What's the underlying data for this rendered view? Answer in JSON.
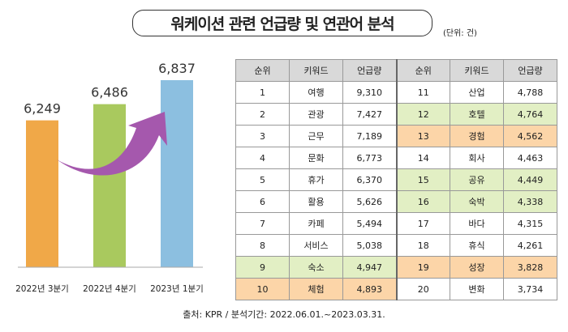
{
  "title": "워케이션 관련 언급량 및 연관어 분석",
  "unit": "(단위: 건)",
  "chart_data": {
    "type": "bar",
    "categories": [
      "2022년 3분기",
      "2022년 4분기",
      "2023년 1분기"
    ],
    "values": [
      6249,
      6486,
      6837
    ],
    "value_labels": [
      "6,249",
      "6,486",
      "6,837"
    ],
    "colors": [
      "#f0a848",
      "#a9c95e",
      "#8cbfe0"
    ],
    "arrow_color": "#a558ad",
    "title": "",
    "xlabel": "",
    "ylabel": "",
    "grid": false
  },
  "table": {
    "headers": [
      "순위",
      "키워드",
      "언급량",
      "순위",
      "키워드",
      "언급량"
    ],
    "rows": [
      {
        "l": [
          "1",
          "여행",
          "9,310"
        ],
        "r": [
          "11",
          "산업",
          "4,788"
        ],
        "lh": "",
        "rh": ""
      },
      {
        "l": [
          "2",
          "관광",
          "7,427"
        ],
        "r": [
          "12",
          "호텔",
          "4,764"
        ],
        "lh": "",
        "rh": "green"
      },
      {
        "l": [
          "3",
          "근무",
          "7,189"
        ],
        "r": [
          "13",
          "경험",
          "4,562"
        ],
        "lh": "",
        "rh": "orange"
      },
      {
        "l": [
          "4",
          "문화",
          "6,773"
        ],
        "r": [
          "14",
          "회사",
          "4,463"
        ],
        "lh": "",
        "rh": ""
      },
      {
        "l": [
          "5",
          "휴가",
          "6,370"
        ],
        "r": [
          "15",
          "공유",
          "4,449"
        ],
        "lh": "",
        "rh": "green"
      },
      {
        "l": [
          "6",
          "활용",
          "5,626"
        ],
        "r": [
          "16",
          "숙박",
          "4,338"
        ],
        "lh": "",
        "rh": "green"
      },
      {
        "l": [
          "7",
          "카페",
          "5,494"
        ],
        "r": [
          "17",
          "바다",
          "4,315"
        ],
        "lh": "",
        "rh": ""
      },
      {
        "l": [
          "8",
          "서비스",
          "5,038"
        ],
        "r": [
          "18",
          "휴식",
          "4,261"
        ],
        "lh": "",
        "rh": ""
      },
      {
        "l": [
          "9",
          "숙소",
          "4,947"
        ],
        "r": [
          "19",
          "성장",
          "3,828"
        ],
        "lh": "green",
        "rh": "orange"
      },
      {
        "l": [
          "10",
          "체험",
          "4,893"
        ],
        "r": [
          "20",
          "변화",
          "3,734"
        ],
        "lh": "orange",
        "rh": ""
      }
    ],
    "highlight_colors": {
      "green": "#e2efc4",
      "orange": "#fcd5a8"
    }
  },
  "footer": "출처: KPR / 분석기간: 2022.06.01.~2023.03.31."
}
